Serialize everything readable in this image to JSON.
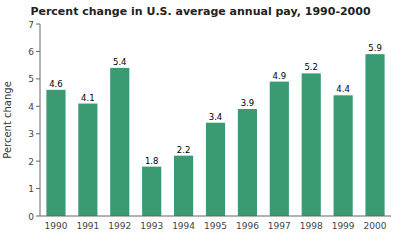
{
  "chart_data": {
    "type": "bar",
    "title": "Percent change in U.S. average annual pay, 1990-2000",
    "ylabel": "Percent change",
    "categories": [
      "1990",
      "1991",
      "1992",
      "1993",
      "1994",
      "1995",
      "1996",
      "1997",
      "1998",
      "1999",
      "2000"
    ],
    "values": [
      4.6,
      4.1,
      5.4,
      1.8,
      2.2,
      3.4,
      3.9,
      4.9,
      5.2,
      4.4,
      5.9
    ],
    "color": "#3a9a72",
    "ylim": [
      0,
      7
    ],
    "yticks": [
      0,
      1,
      2,
      3,
      4,
      5,
      6,
      7
    ],
    "grid": false,
    "data_labels": true
  }
}
